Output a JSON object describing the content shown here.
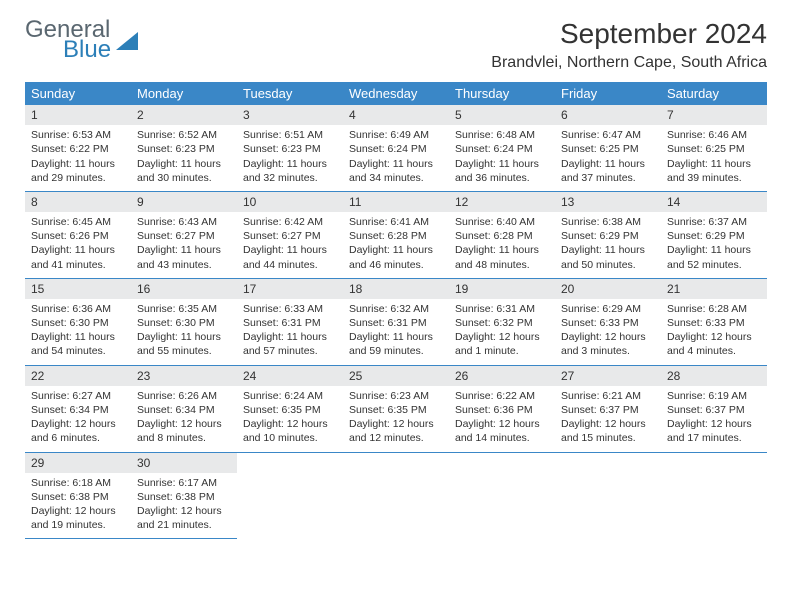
{
  "logo": {
    "line1": "General",
    "line2": "Blue"
  },
  "title": "September 2024",
  "location": "Brandvlei, Northern Cape, South Africa",
  "header_color": "#3a87c7",
  "daynum_bg": "#e8e9ea",
  "border_color": "#3a87c7",
  "weekdays": [
    "Sunday",
    "Monday",
    "Tuesday",
    "Wednesday",
    "Thursday",
    "Friday",
    "Saturday"
  ],
  "days": [
    {
      "n": 1,
      "sr": "6:53 AM",
      "ss": "6:22 PM",
      "dl": "11 hours and 29 minutes."
    },
    {
      "n": 2,
      "sr": "6:52 AM",
      "ss": "6:23 PM",
      "dl": "11 hours and 30 minutes."
    },
    {
      "n": 3,
      "sr": "6:51 AM",
      "ss": "6:23 PM",
      "dl": "11 hours and 32 minutes."
    },
    {
      "n": 4,
      "sr": "6:49 AM",
      "ss": "6:24 PM",
      "dl": "11 hours and 34 minutes."
    },
    {
      "n": 5,
      "sr": "6:48 AM",
      "ss": "6:24 PM",
      "dl": "11 hours and 36 minutes."
    },
    {
      "n": 6,
      "sr": "6:47 AM",
      "ss": "6:25 PM",
      "dl": "11 hours and 37 minutes."
    },
    {
      "n": 7,
      "sr": "6:46 AM",
      "ss": "6:25 PM",
      "dl": "11 hours and 39 minutes."
    },
    {
      "n": 8,
      "sr": "6:45 AM",
      "ss": "6:26 PM",
      "dl": "11 hours and 41 minutes."
    },
    {
      "n": 9,
      "sr": "6:43 AM",
      "ss": "6:27 PM",
      "dl": "11 hours and 43 minutes."
    },
    {
      "n": 10,
      "sr": "6:42 AM",
      "ss": "6:27 PM",
      "dl": "11 hours and 44 minutes."
    },
    {
      "n": 11,
      "sr": "6:41 AM",
      "ss": "6:28 PM",
      "dl": "11 hours and 46 minutes."
    },
    {
      "n": 12,
      "sr": "6:40 AM",
      "ss": "6:28 PM",
      "dl": "11 hours and 48 minutes."
    },
    {
      "n": 13,
      "sr": "6:38 AM",
      "ss": "6:29 PM",
      "dl": "11 hours and 50 minutes."
    },
    {
      "n": 14,
      "sr": "6:37 AM",
      "ss": "6:29 PM",
      "dl": "11 hours and 52 minutes."
    },
    {
      "n": 15,
      "sr": "6:36 AM",
      "ss": "6:30 PM",
      "dl": "11 hours and 54 minutes."
    },
    {
      "n": 16,
      "sr": "6:35 AM",
      "ss": "6:30 PM",
      "dl": "11 hours and 55 minutes."
    },
    {
      "n": 17,
      "sr": "6:33 AM",
      "ss": "6:31 PM",
      "dl": "11 hours and 57 minutes."
    },
    {
      "n": 18,
      "sr": "6:32 AM",
      "ss": "6:31 PM",
      "dl": "11 hours and 59 minutes."
    },
    {
      "n": 19,
      "sr": "6:31 AM",
      "ss": "6:32 PM",
      "dl": "12 hours and 1 minute."
    },
    {
      "n": 20,
      "sr": "6:29 AM",
      "ss": "6:33 PM",
      "dl": "12 hours and 3 minutes."
    },
    {
      "n": 21,
      "sr": "6:28 AM",
      "ss": "6:33 PM",
      "dl": "12 hours and 4 minutes."
    },
    {
      "n": 22,
      "sr": "6:27 AM",
      "ss": "6:34 PM",
      "dl": "12 hours and 6 minutes."
    },
    {
      "n": 23,
      "sr": "6:26 AM",
      "ss": "6:34 PM",
      "dl": "12 hours and 8 minutes."
    },
    {
      "n": 24,
      "sr": "6:24 AM",
      "ss": "6:35 PM",
      "dl": "12 hours and 10 minutes."
    },
    {
      "n": 25,
      "sr": "6:23 AM",
      "ss": "6:35 PM",
      "dl": "12 hours and 12 minutes."
    },
    {
      "n": 26,
      "sr": "6:22 AM",
      "ss": "6:36 PM",
      "dl": "12 hours and 14 minutes."
    },
    {
      "n": 27,
      "sr": "6:21 AM",
      "ss": "6:37 PM",
      "dl": "12 hours and 15 minutes."
    },
    {
      "n": 28,
      "sr": "6:19 AM",
      "ss": "6:37 PM",
      "dl": "12 hours and 17 minutes."
    },
    {
      "n": 29,
      "sr": "6:18 AM",
      "ss": "6:38 PM",
      "dl": "12 hours and 19 minutes."
    },
    {
      "n": 30,
      "sr": "6:17 AM",
      "ss": "6:38 PM",
      "dl": "12 hours and 21 minutes."
    }
  ],
  "start_weekday": 0,
  "labels": {
    "sunrise": "Sunrise:",
    "sunset": "Sunset:",
    "daylight": "Daylight:"
  }
}
